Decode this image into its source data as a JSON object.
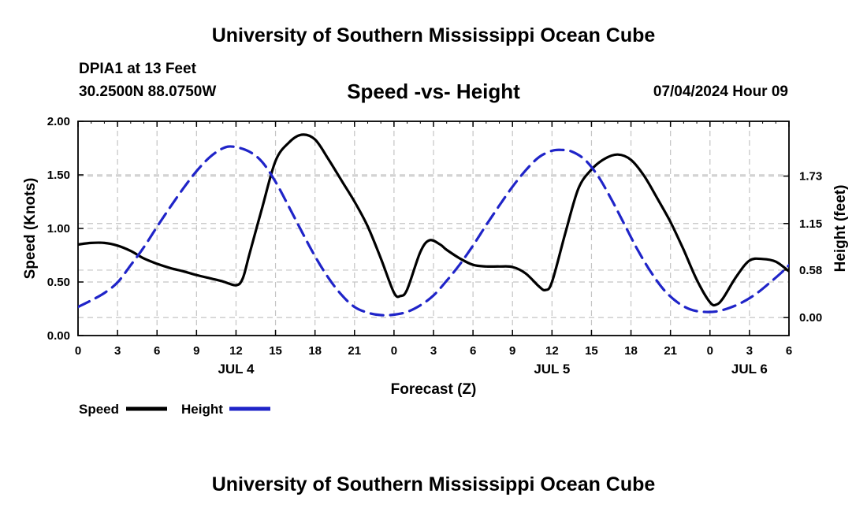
{
  "header": {
    "title": "University of Southern Mississippi Ocean Cube",
    "station": "DPIA1 at 13 Feet",
    "coords": "30.2500N  88.0750W",
    "subtitle": "Speed -vs- Height",
    "datetime": "07/04/2024 Hour 09"
  },
  "footer": {
    "title": "University of Southern Mississippi Ocean Cube"
  },
  "chart_data": {
    "type": "line",
    "title": "Speed -vs- Height",
    "xlabel": "Forecast (Z)",
    "ylabel": "Speed (Knots)",
    "y2label": "Height (feet)",
    "xlim": [
      0,
      54
    ],
    "ylim": [
      0,
      2.0
    ],
    "y2lim": [
      -0.22,
      2.4
    ],
    "x_ticks": [
      {
        "x": 0,
        "label": "0"
      },
      {
        "x": 3,
        "label": "3"
      },
      {
        "x": 6,
        "label": "6"
      },
      {
        "x": 9,
        "label": "9"
      },
      {
        "x": 12,
        "label": "12"
      },
      {
        "x": 15,
        "label": "15"
      },
      {
        "x": 18,
        "label": "18"
      },
      {
        "x": 21,
        "label": "21"
      },
      {
        "x": 24,
        "label": "0"
      },
      {
        "x": 27,
        "label": "3"
      },
      {
        "x": 30,
        "label": "6"
      },
      {
        "x": 33,
        "label": "9"
      },
      {
        "x": 36,
        "label": "12"
      },
      {
        "x": 39,
        "label": "15"
      },
      {
        "x": 42,
        "label": "18"
      },
      {
        "x": 45,
        "label": "21"
      },
      {
        "x": 48,
        "label": "0"
      },
      {
        "x": 51,
        "label": "3"
      },
      {
        "x": 54,
        "label": "6"
      }
    ],
    "day_labels": [
      {
        "x": 12,
        "label": "JUL 4"
      },
      {
        "x": 36,
        "label": "JUL 5"
      },
      {
        "x": 51,
        "label": "JUL 6"
      }
    ],
    "y_ticks": [
      {
        "v": 0.0,
        "label": "0.00"
      },
      {
        "v": 0.5,
        "label": "0.50"
      },
      {
        "v": 1.0,
        "label": "1.00"
      },
      {
        "v": 1.5,
        "label": "1.50"
      },
      {
        "v": 2.0,
        "label": "2.00"
      }
    ],
    "y2_ticks": [
      {
        "v": 0.0,
        "label": "0.00"
      },
      {
        "v": 0.58,
        "label": "0.58"
      },
      {
        "v": 1.15,
        "label": "1.15"
      },
      {
        "v": 1.73,
        "label": "1.73"
      }
    ],
    "series": [
      {
        "name": "Speed",
        "axis": "left",
        "color": "#000000",
        "dash": "solid",
        "points": [
          [
            0,
            0.85
          ],
          [
            1,
            0.865
          ],
          [
            2,
            0.865
          ],
          [
            3,
            0.84
          ],
          [
            4,
            0.79
          ],
          [
            5,
            0.72
          ],
          [
            6,
            0.67
          ],
          [
            7,
            0.63
          ],
          [
            8,
            0.6
          ],
          [
            9,
            0.565
          ],
          [
            10,
            0.535
          ],
          [
            11,
            0.505
          ],
          [
            12,
            0.47
          ],
          [
            12.5,
            0.53
          ],
          [
            13,
            0.75
          ],
          [
            14,
            1.2
          ],
          [
            15,
            1.63
          ],
          [
            16,
            1.8
          ],
          [
            17,
            1.875
          ],
          [
            18,
            1.83
          ],
          [
            19,
            1.65
          ],
          [
            20,
            1.45
          ],
          [
            21,
            1.25
          ],
          [
            22,
            1.02
          ],
          [
            23,
            0.72
          ],
          [
            24,
            0.4
          ],
          [
            24.5,
            0.37
          ],
          [
            25,
            0.43
          ],
          [
            26,
            0.78
          ],
          [
            26.7,
            0.89
          ],
          [
            27.5,
            0.85
          ],
          [
            28,
            0.8
          ],
          [
            29,
            0.72
          ],
          [
            30,
            0.66
          ],
          [
            31,
            0.645
          ],
          [
            32,
            0.645
          ],
          [
            33,
            0.64
          ],
          [
            34,
            0.58
          ],
          [
            35,
            0.46
          ],
          [
            35.5,
            0.425
          ],
          [
            36,
            0.5
          ],
          [
            37,
            0.95
          ],
          [
            38,
            1.37
          ],
          [
            39,
            1.55
          ],
          [
            40,
            1.65
          ],
          [
            41,
            1.69
          ],
          [
            42,
            1.64
          ],
          [
            43,
            1.49
          ],
          [
            44,
            1.28
          ],
          [
            45,
            1.06
          ],
          [
            46,
            0.8
          ],
          [
            47,
            0.52
          ],
          [
            48,
            0.31
          ],
          [
            48.5,
            0.29
          ],
          [
            49,
            0.35
          ],
          [
            50,
            0.55
          ],
          [
            51,
            0.7
          ],
          [
            52,
            0.715
          ],
          [
            53,
            0.69
          ],
          [
            54,
            0.6
          ]
        ]
      },
      {
        "name": "Height",
        "axis": "right",
        "color": "#1f24c8",
        "dash": "dashed",
        "points": [
          [
            0,
            0.13
          ],
          [
            1,
            0.21
          ],
          [
            2,
            0.3
          ],
          [
            3,
            0.43
          ],
          [
            4,
            0.64
          ],
          [
            5,
            0.86
          ],
          [
            6,
            1.11
          ],
          [
            7,
            1.35
          ],
          [
            8,
            1.58
          ],
          [
            9,
            1.79
          ],
          [
            10,
            1.96
          ],
          [
            11,
            2.07
          ],
          [
            11.8,
            2.09
          ],
          [
            13,
            2.03
          ],
          [
            14,
            1.9
          ],
          [
            15,
            1.66
          ],
          [
            16,
            1.36
          ],
          [
            17,
            1.05
          ],
          [
            18,
            0.75
          ],
          [
            19,
            0.49
          ],
          [
            20,
            0.28
          ],
          [
            21,
            0.13
          ],
          [
            22,
            0.06
          ],
          [
            23,
            0.03
          ],
          [
            24,
            0.035
          ],
          [
            25,
            0.07
          ],
          [
            26,
            0.15
          ],
          [
            27,
            0.27
          ],
          [
            28,
            0.45
          ],
          [
            29,
            0.65
          ],
          [
            30,
            0.88
          ],
          [
            31,
            1.13
          ],
          [
            32,
            1.37
          ],
          [
            33,
            1.6
          ],
          [
            34,
            1.8
          ],
          [
            35,
            1.96
          ],
          [
            36,
            2.04
          ],
          [
            36.7,
            2.05
          ],
          [
            37.5,
            2.03
          ],
          [
            38.5,
            1.93
          ],
          [
            39.5,
            1.73
          ],
          [
            40.5,
            1.45
          ],
          [
            41.5,
            1.14
          ],
          [
            42.5,
            0.83
          ],
          [
            43.5,
            0.56
          ],
          [
            44.5,
            0.34
          ],
          [
            45.5,
            0.19
          ],
          [
            46.5,
            0.1
          ],
          [
            47.5,
            0.07
          ],
          [
            48.5,
            0.075
          ],
          [
            49.5,
            0.12
          ],
          [
            50.5,
            0.19
          ],
          [
            51.5,
            0.29
          ],
          [
            52.5,
            0.42
          ],
          [
            53.5,
            0.56
          ],
          [
            54,
            0.64
          ]
        ]
      }
    ]
  }
}
